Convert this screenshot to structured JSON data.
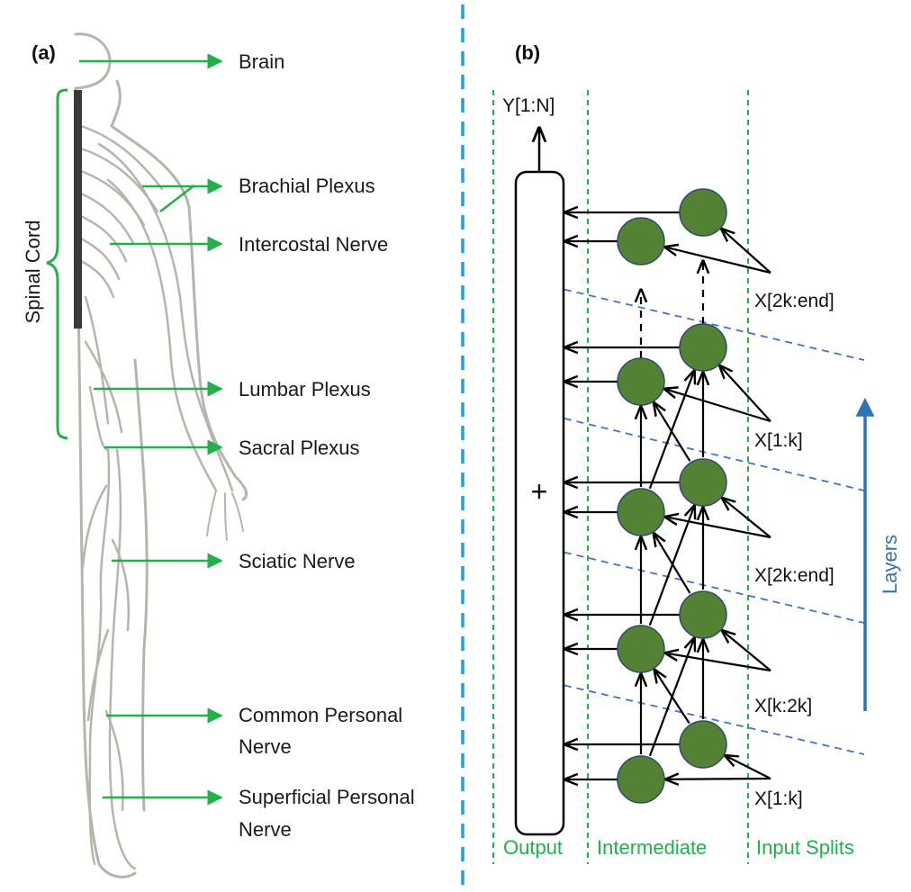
{
  "panel_a": {
    "label": "(a)",
    "vertical_label": "Spinal Cord",
    "annotations": [
      {
        "text": "Brain"
      },
      {
        "text": "Brachial Plexus"
      },
      {
        "text": "Intercostal Nerve"
      },
      {
        "text": "Lumbar Plexus"
      },
      {
        "text": "Sacral Plexus"
      },
      {
        "text": "Sciatic Nerve"
      },
      {
        "text": "Common Personal",
        "text2": "Nerve"
      },
      {
        "text": "Superficial Personal",
        "text2": "Nerve"
      }
    ]
  },
  "panel_b": {
    "label": "(b)",
    "output_label": "Y[1:N]",
    "sum_symbol": "+",
    "zones": [
      "Output",
      "Intermediate",
      "Input Splits"
    ],
    "axis_label": "Layers",
    "input_splits": [
      "X[2k:end]",
      "X[1:k]",
      "X[2k:end]",
      "X[k:2k]",
      "X[1:k]"
    ]
  },
  "colors": {
    "arrow_green": "#22b04b",
    "node_fill": "#548235",
    "node_stroke": "#2f4a6b",
    "zone_green": "#22b04b",
    "separator_blue": "#1ea0dc",
    "layer_dash": "#4472c4",
    "layers_blue": "#2e75b6",
    "body_outline": "#b8b4ac"
  }
}
